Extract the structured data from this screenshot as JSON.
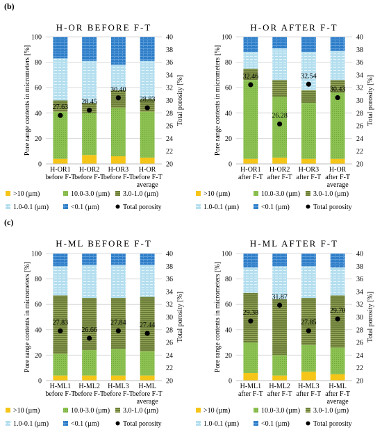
{
  "sections": [
    {
      "label": "(b)",
      "y_axis_left": "Pore range contents in micrometers  [%]",
      "y_axis_right": "Total porosity [%]"
    },
    {
      "label": "(c)",
      "y_axis_left": "Pore range contents in micrometers  [%]",
      "y_axis_right": "Total porosity [%]"
    }
  ],
  "colors": {
    "gt10": "#f5c518",
    "c10_3": "#8cc152",
    "c3_1": "#6b7d38",
    "c1_01": "#b5dfef",
    "lt01": "#2e7ec9",
    "porosity": "#000000"
  },
  "legend": [
    {
      "key": "gt10",
      "label": ">10 (µm)"
    },
    {
      "key": "c10_3",
      "label": "10.0-3.0 (µm)"
    },
    {
      "key": "c3_1",
      "label": "3.0-1.0 (µm)"
    },
    {
      "key": "c1_01",
      "label": "1.0-0.1 (µm)"
    },
    {
      "key": "lt01",
      "label": "<0.1 (µm)"
    },
    {
      "key": "porosity",
      "label": "Total porosity"
    }
  ],
  "chart_data": [
    {
      "type": "bar",
      "title": "H-OR BEFORE F-T",
      "categories": [
        "H-OR1 before F-T",
        "H-OR2 before F-T",
        "H-OR3 before F-T",
        "H-OR before F-T average"
      ],
      "category_lines": [
        [
          "H-OR1",
          "before F-T"
        ],
        [
          "H-OR2",
          "before F-T"
        ],
        [
          "H-OR3",
          "before F-T"
        ],
        [
          "H-OR",
          "before F-T",
          "average"
        ]
      ],
      "ylabel": "Pore range contents in micrometers  [%]",
      "y2label": "Total porosity [%]",
      "ylim": [
        0,
        100
      ],
      "y2lim": [
        20,
        40
      ],
      "stacked": true,
      "series": [
        {
          "name": ">10 (µm)",
          "values": [
            4,
            7,
            6,
            5
          ]
        },
        {
          "name": "10.0-3.0 (µm)",
          "values": [
            37,
            33,
            38,
            36
          ]
        },
        {
          "name": "3.0-1.0 (µm)",
          "values": [
            9,
            8,
            14,
            10
          ]
        },
        {
          "name": "1.0-0.1 (µm)",
          "values": [
            33,
            33,
            20,
            30
          ]
        },
        {
          "name": "<0.1 (µm)",
          "values": [
            17,
            19,
            22,
            19
          ]
        }
      ],
      "porosity": {
        "name": "Total porosity",
        "values": [
          27.63,
          28.45,
          30.4,
          28.83
        ],
        "labels": [
          "27.63",
          "28.45",
          "30.40",
          "28.83"
        ]
      },
      "grid": true
    },
    {
      "type": "bar",
      "title": "H-OR AFTER F-T",
      "categories": [
        "H-OR1 after F-T",
        "H-OR2 after F-T",
        "H-OR3 after F-T",
        "H-OR after F-T average"
      ],
      "category_lines": [
        [
          "H-OR1",
          "after F-T"
        ],
        [
          "H-OR2",
          "after F-T"
        ],
        [
          "H-OR3",
          "after F-T"
        ],
        [
          "H-OR",
          "after F-T",
          "average"
        ]
      ],
      "ylabel": "Pore range contents in micrometers  [%]",
      "y2label": "Total porosity [%]",
      "ylim": [
        0,
        100
      ],
      "y2lim": [
        20,
        40
      ],
      "stacked": true,
      "series": [
        {
          "name": ">10 (µm)",
          "values": [
            4,
            5,
            4,
            4
          ]
        },
        {
          "name": "10.0-3.0 (µm)",
          "values": [
            62,
            48,
            44,
            52
          ]
        },
        {
          "name": "3.0-1.0 (µm)",
          "values": [
            9,
            13,
            10,
            10
          ]
        },
        {
          "name": "1.0-0.1 (µm)",
          "values": [
            13,
            25,
            30,
            23
          ]
        },
        {
          "name": "<0.1 (µm)",
          "values": [
            12,
            9,
            12,
            11
          ]
        }
      ],
      "porosity": {
        "name": "Total porosity",
        "values": [
          32.46,
          26.28,
          32.54,
          30.43
        ],
        "labels": [
          "32.46",
          "26.28",
          "32.54",
          "30.43"
        ]
      },
      "grid": true
    },
    {
      "type": "bar",
      "title": "H-ML BEFORE F-T",
      "categories": [
        "H-ML1 before F-T",
        "H-ML2 before F-T",
        "H-ML3 before F-T",
        "H-ML before F-T average"
      ],
      "category_lines": [
        [
          "H-ML1",
          "before F-T"
        ],
        [
          "H-ML2",
          "before F-T"
        ],
        [
          "H-ML3",
          "before F-T"
        ],
        [
          "H-ML",
          "before F-T",
          "average"
        ]
      ],
      "ylabel": "Pore range contents in micrometers  [%]",
      "y2label": "Total porosity [%]",
      "ylim": [
        0,
        100
      ],
      "y2lim": [
        20,
        40
      ],
      "stacked": true,
      "series": [
        {
          "name": ">10 (µm)",
          "values": [
            4,
            4,
            4,
            4
          ]
        },
        {
          "name": "10.0-3.0 (µm)",
          "values": [
            17,
            20,
            21,
            19
          ]
        },
        {
          "name": "3.0-1.0 (µm)",
          "values": [
            46,
            41,
            40,
            43
          ]
        },
        {
          "name": "1.0-0.1 (µm)",
          "values": [
            23,
            26,
            26,
            25
          ]
        },
        {
          "name": "<0.1 (µm)",
          "values": [
            10,
            9,
            9,
            9
          ]
        }
      ],
      "porosity": {
        "name": "Total porosity",
        "values": [
          27.83,
          26.66,
          27.84,
          27.44
        ],
        "labels": [
          "27.83",
          "26.66",
          "27.84",
          "27.44"
        ]
      },
      "grid": true
    },
    {
      "type": "bar",
      "title": "H-ML AFTER F-T",
      "categories": [
        "H-ML1 after F-T",
        "H-ML2 after F-T",
        "H-ML3 after F-T",
        "H-ML after F-T average"
      ],
      "category_lines": [
        [
          "H-ML1",
          "after F-T"
        ],
        [
          "H-ML2",
          "after F-T"
        ],
        [
          "H-ML3",
          "after F-T"
        ],
        [
          "H-ML",
          "after F-T",
          "average"
        ]
      ],
      "ylabel": "Pore range contents in micrometers  [%]",
      "y2label": "Total porosity [%]",
      "ylim": [
        0,
        100
      ],
      "y2lim": [
        20,
        40
      ],
      "stacked": true,
      "series": [
        {
          "name": ">10 (µm)",
          "values": [
            6,
            4,
            7,
            5
          ]
        },
        {
          "name": "10.0-3.0 (µm)",
          "values": [
            24,
            16,
            21,
            21
          ]
        },
        {
          "name": "3.0-1.0 (µm)",
          "values": [
            39,
            44,
            37,
            41
          ]
        },
        {
          "name": "1.0-0.1 (µm)",
          "values": [
            20,
            26,
            25,
            22
          ]
        },
        {
          "name": "<0.1 (µm)",
          "values": [
            11,
            10,
            10,
            11
          ]
        }
      ],
      "porosity": {
        "name": "Total porosity",
        "values": [
          29.38,
          31.87,
          27.85,
          29.7
        ],
        "labels": [
          "29.38",
          "31.87",
          "27.85",
          "29.70"
        ]
      },
      "grid": true
    }
  ]
}
